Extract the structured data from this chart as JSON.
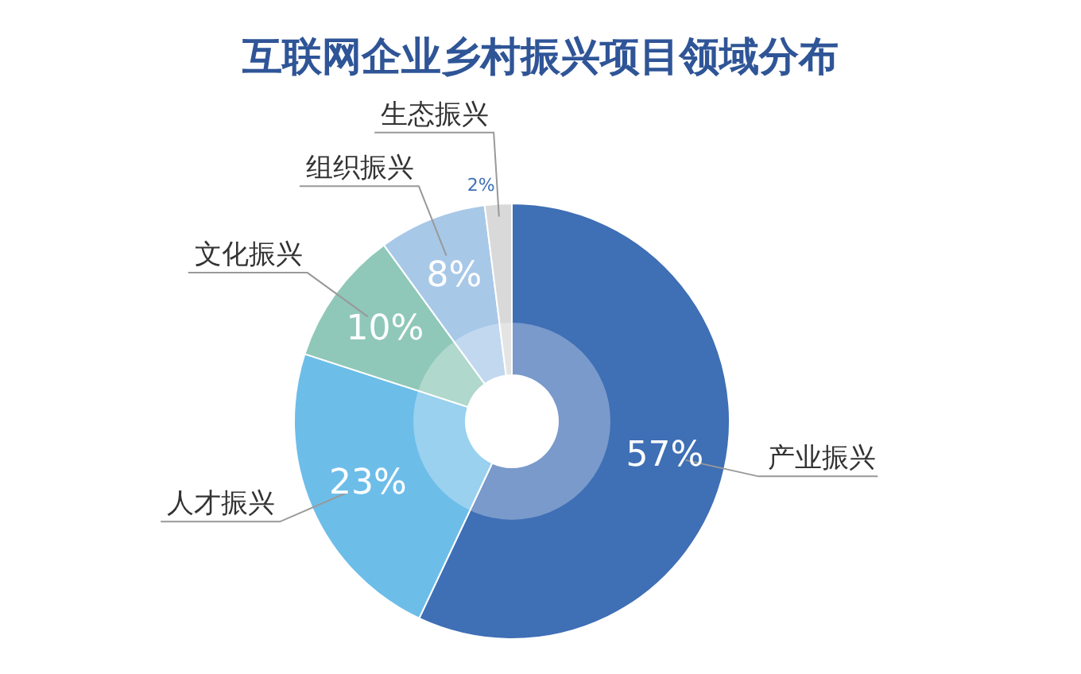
{
  "chart_data": {
    "type": "donut",
    "title": "互联网企业乡村振兴项目领域分布",
    "categories": [
      "产业振兴",
      "人才振兴",
      "文化振兴",
      "组织振兴",
      "生态振兴"
    ],
    "values": [
      57,
      23,
      10,
      8,
      2
    ],
    "colors": [
      "#3f6fb5",
      "#6dbde9",
      "#8fc8b8",
      "#a8c8e8",
      "#d9d9d9"
    ],
    "value_labels": [
      "57%",
      "23%",
      "10%",
      "8%",
      "2%"
    ]
  }
}
